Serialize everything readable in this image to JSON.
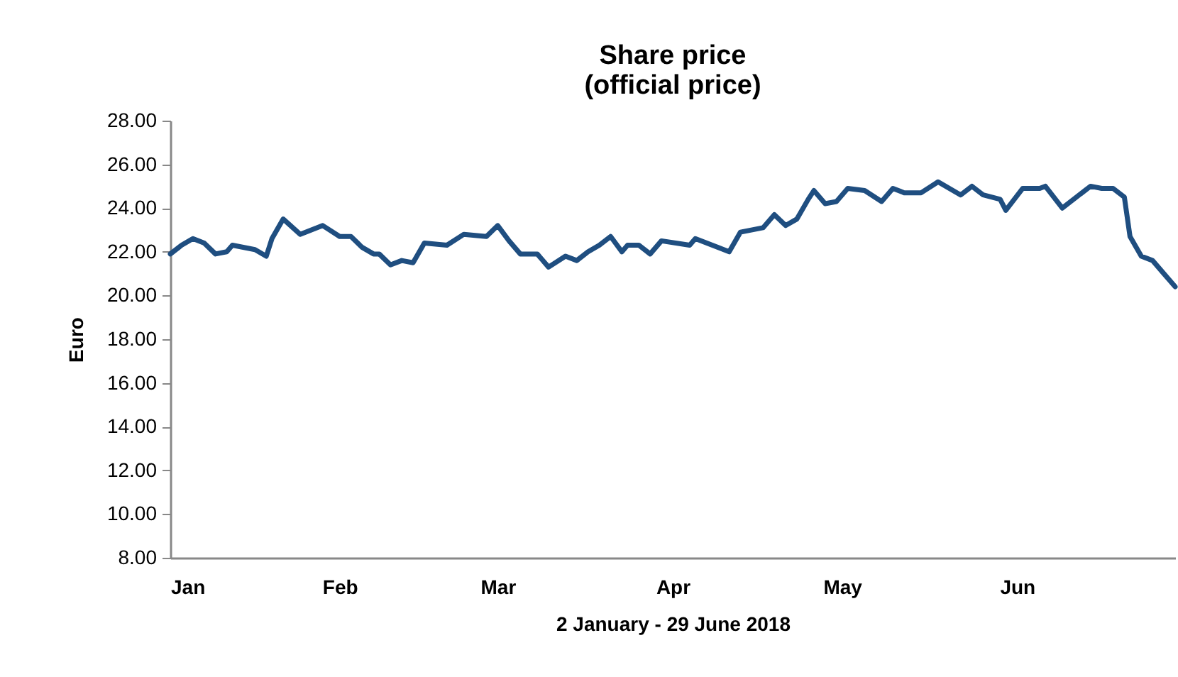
{
  "chart_data": {
    "type": "line",
    "title": "Share price",
    "subtitle": "(official price)",
    "xlabel": "2 January - 29 June 2018",
    "ylabel": "Euro",
    "x": [
      "2018-01-02",
      "2018-01-04",
      "2018-01-06",
      "2018-01-08",
      "2018-01-10",
      "2018-01-12",
      "2018-01-13",
      "2018-01-17",
      "2018-01-19",
      "2018-01-20",
      "2018-01-22",
      "2018-01-25",
      "2018-01-29",
      "2018-02-01",
      "2018-02-03",
      "2018-02-05",
      "2018-02-07",
      "2018-02-08",
      "2018-02-10",
      "2018-02-12",
      "2018-02-14",
      "2018-02-16",
      "2018-02-20",
      "2018-02-23",
      "2018-02-27",
      "2018-03-01",
      "2018-03-03",
      "2018-03-05",
      "2018-03-08",
      "2018-03-10",
      "2018-03-13",
      "2018-03-15",
      "2018-03-17",
      "2018-03-19",
      "2018-03-21",
      "2018-03-23",
      "2018-03-24",
      "2018-03-26",
      "2018-03-28",
      "2018-03-30",
      "2018-04-04",
      "2018-04-05",
      "2018-04-11",
      "2018-04-13",
      "2018-04-17",
      "2018-04-19",
      "2018-04-21",
      "2018-04-23",
      "2018-04-25",
      "2018-04-26",
      "2018-04-28",
      "2018-04-30",
      "2018-05-02",
      "2018-05-05",
      "2018-05-08",
      "2018-05-10",
      "2018-05-12",
      "2018-05-15",
      "2018-05-18",
      "2018-05-22",
      "2018-05-24",
      "2018-05-26",
      "2018-05-29",
      "2018-05-30",
      "2018-06-02",
      "2018-06-05",
      "2018-06-06",
      "2018-06-09",
      "2018-06-14",
      "2018-06-16",
      "2018-06-18",
      "2018-06-20",
      "2018-06-21",
      "2018-06-23",
      "2018-06-25",
      "2018-06-27",
      "2018-06-29"
    ],
    "series": [
      {
        "color": "#1f4e80",
        "values": [
          21.9,
          22.3,
          22.6,
          22.4,
          21.9,
          22.0,
          22.3,
          22.1,
          21.8,
          22.6,
          23.5,
          22.8,
          23.2,
          22.7,
          22.7,
          22.2,
          21.9,
          21.9,
          21.4,
          21.6,
          21.5,
          22.4,
          22.3,
          22.8,
          22.7,
          23.2,
          22.5,
          21.9,
          21.9,
          21.3,
          21.8,
          21.6,
          22.0,
          22.3,
          22.7,
          22.0,
          22.3,
          22.3,
          21.9,
          22.5,
          22.3,
          22.6,
          22.0,
          22.9,
          23.1,
          23.7,
          23.2,
          23.5,
          24.4,
          24.8,
          24.2,
          24.3,
          24.9,
          24.8,
          24.3,
          24.9,
          24.7,
          24.7,
          25.2,
          24.6,
          25.0,
          24.6,
          24.4,
          23.9,
          24.9,
          24.9,
          25.0,
          24.0,
          25.0,
          24.9,
          24.9,
          24.5,
          22.7,
          21.8,
          21.6,
          21.0,
          20.4
        ]
      }
    ],
    "xlim": [
      "2018-01-02",
      "2018-06-29"
    ],
    "xticks": [
      {
        "value": "2018-01-02",
        "label": "Jan"
      },
      {
        "value": "2018-02-01",
        "label": "Feb"
      },
      {
        "value": "2018-03-01",
        "label": "Mar"
      },
      {
        "value": "2018-04-01",
        "label": "Apr"
      },
      {
        "value": "2018-05-01",
        "label": "May"
      },
      {
        "value": "2018-06-01",
        "label": "Jun"
      }
    ],
    "ylim": [
      8,
      28
    ],
    "yticks": [
      {
        "value": 8,
        "label": "8.00"
      },
      {
        "value": 10,
        "label": "10.00"
      },
      {
        "value": 12,
        "label": "12.00"
      },
      {
        "value": 14,
        "label": "14.00"
      },
      {
        "value": 16,
        "label": "16.00"
      },
      {
        "value": 18,
        "label": "18.00"
      },
      {
        "value": 20,
        "label": "20.00"
      },
      {
        "value": 22,
        "label": "22.00"
      },
      {
        "value": 24,
        "label": "24.00"
      },
      {
        "value": 26,
        "label": "26.00"
      },
      {
        "value": 28,
        "label": "28.00"
      }
    ],
    "grid": false,
    "legend": false,
    "marker": "none",
    "line_style": "solid"
  }
}
